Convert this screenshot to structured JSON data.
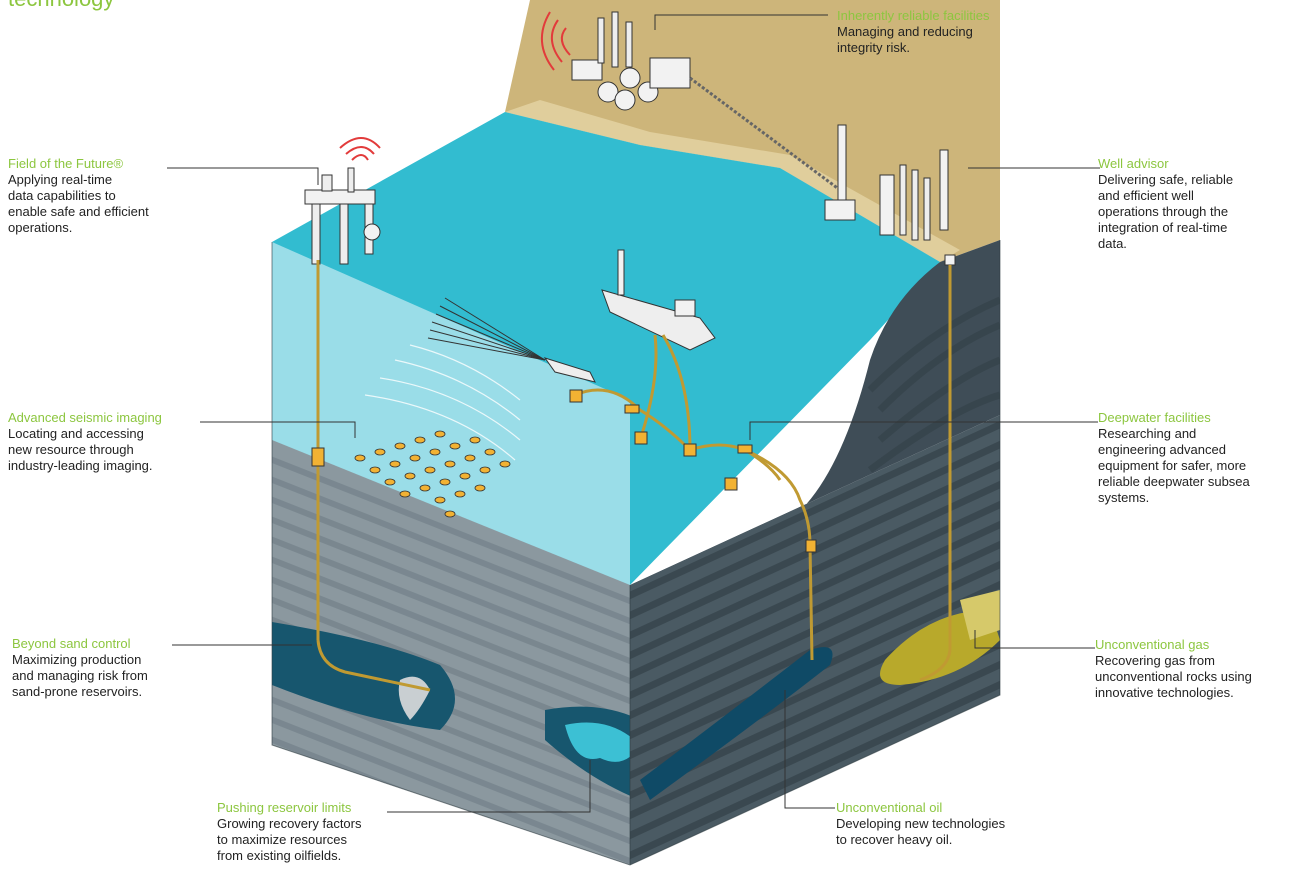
{
  "heading": "technology",
  "colors": {
    "accent": "#8cc63f",
    "sea": "#4ec3d6",
    "land": "#cdb57a",
    "rock": "#4a5a63",
    "reservoir": "#0f4a66",
    "gas": "#b8a92b"
  },
  "callouts": [
    {
      "id": "field-of-the-future",
      "title": "Field of the Future®",
      "description": [
        "Applying real-time",
        "data capabilities to",
        "enable safe and efficient",
        "operations."
      ]
    },
    {
      "id": "inherently-reliable-facilities",
      "title": "Inherently reliable facilities",
      "description": [
        "Managing and reducing",
        "integrity risk."
      ]
    },
    {
      "id": "well-advisor",
      "title": "Well advisor",
      "description": [
        "Delivering safe, reliable",
        "and efficient well",
        "operations through the",
        "integration of real-time",
        "data."
      ]
    },
    {
      "id": "advanced-seismic-imaging",
      "title": "Advanced seismic imaging",
      "description": [
        "Locating and accessing",
        "new resource through",
        "industry-leading imaging."
      ]
    },
    {
      "id": "deepwater-facilities",
      "title": "Deepwater facilities",
      "description": [
        "Researching and",
        "engineering advanced",
        "equipment for safer, more",
        "reliable deepwater subsea",
        "systems."
      ]
    },
    {
      "id": "beyond-sand-control",
      "title": "Beyond sand control",
      "description": [
        "Maximizing production",
        "and managing risk from",
        "sand-prone reservoirs."
      ]
    },
    {
      "id": "unconventional-gas",
      "title": "Unconventional gas",
      "description": [
        "Recovering gas from",
        "unconventional rocks using",
        "innovative technologies."
      ]
    },
    {
      "id": "pushing-reservoir-limits",
      "title": "Pushing reservoir limits",
      "description": [
        "Growing recovery factors",
        "to maximize resources",
        "from existing oilfields."
      ]
    },
    {
      "id": "unconventional-oil",
      "title": "Unconventional oil",
      "description": [
        "Developing new technologies",
        "to recover heavy oil."
      ]
    }
  ]
}
